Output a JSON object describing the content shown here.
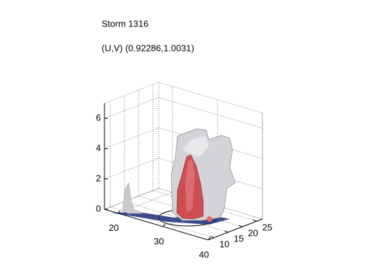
{
  "chart_data": {
    "type": "isosurface3d",
    "title": "Storm 1316",
    "subtitle": "(U,V) (0.92286,1.0031)",
    "xlim": [
      17,
      40
    ],
    "xticks": [
      20,
      30,
      40
    ],
    "ylim": [
      8,
      27
    ],
    "yticks": [
      10,
      15,
      20,
      25
    ],
    "zlim": [
      0,
      7
    ],
    "zticks": [
      0,
      2,
      4,
      6
    ],
    "grid": true
  }
}
